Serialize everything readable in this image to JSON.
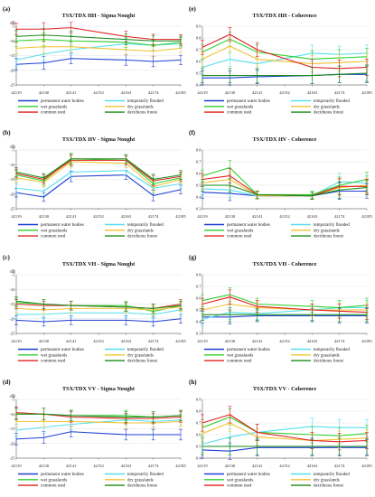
{
  "figure": {
    "colors": {
      "permanent water bodies": "#1f3fd4",
      "temporarily flooded": "#55dfee",
      "wet grasslands": "#2fd12f",
      "dry grasslands": "#f2c230",
      "common reed": "#e02020",
      "deciduous forest": "#1a8a1a"
    }
  },
  "chart_data": [
    {
      "id": "a",
      "panel_label": "(a)",
      "type": "line",
      "title": "TSX/TDX  HH - Sigma Nought",
      "unit": "dB",
      "x": [
        "42119",
        "42130",
        "42141",
        "42152",
        "42163",
        "42174",
        "42185"
      ],
      "yticks": [
        "-5",
        "-10",
        "-15",
        "-20",
        "-25"
      ],
      "ylim": [
        -25,
        -5
      ],
      "legend": [
        "permanent water bodies",
        "temporarily flooded",
        "wet grasslands",
        "dry grasslands",
        "common reed",
        "deciduous forest"
      ],
      "series": [
        {
          "name": "permanent water bodies",
          "values": [
            -18.0,
            -17.5,
            -16.0,
            null,
            -16.5,
            -17.0,
            -16.5
          ]
        },
        {
          "name": "temporarily flooded",
          "values": [
            -16.5,
            -14.5,
            -13.0,
            null,
            -11.0,
            -11.5,
            -11.0
          ]
        },
        {
          "name": "wet grasslands",
          "values": [
            -10.0,
            -9.5,
            -10.0,
            null,
            -10.5,
            -11.5,
            -10.5
          ]
        },
        {
          "name": "dry grasslands",
          "values": [
            -12.5,
            -12.0,
            -12.0,
            null,
            -13.0,
            -13.5,
            -12.5
          ]
        },
        {
          "name": "common reed",
          "values": [
            -6.0,
            -6.0,
            -5.5,
            null,
            -8.5,
            -9.5,
            -9.5
          ]
        },
        {
          "name": "deciduous forest",
          "values": [
            -8.5,
            -8.0,
            -8.5,
            null,
            -9.5,
            -10.0,
            -10.0
          ]
        }
      ],
      "err": [
        2.0,
        2.2,
        1.8,
        null,
        1.8,
        1.8,
        1.6
      ]
    },
    {
      "id": "b",
      "panel_label": "(b)",
      "type": "line",
      "title": "TSX/TDX  HV - Sigma Nought",
      "unit": "dB",
      "x": [
        "42119",
        "42130",
        "42141",
        "42152",
        "42163",
        "42174",
        "42185"
      ],
      "yticks": [
        "-5",
        "-10",
        "-15",
        "-20",
        "-25"
      ],
      "ylim": [
        -25,
        -5
      ],
      "legend": [
        "permanent water bodies",
        "temporarily flooded",
        "wet grasslands",
        "dry grasslands",
        "common reed",
        "deciduous forest"
      ],
      "series": [
        {
          "name": "permanent water bodies",
          "values": [
            -19.5,
            -21.0,
            -14.0,
            null,
            -13.5,
            -20.5,
            -18.5
          ]
        },
        {
          "name": "temporarily flooded",
          "values": [
            -18.0,
            -19.0,
            -12.5,
            null,
            -12.0,
            -18.0,
            -16.5
          ]
        },
        {
          "name": "wet grasslands",
          "values": [
            -13.5,
            -15.5,
            -8.0,
            null,
            -8.5,
            -16.5,
            -14.5
          ]
        },
        {
          "name": "dry grasslands",
          "values": [
            -14.5,
            -16.0,
            -9.0,
            null,
            -9.5,
            -17.5,
            -15.0
          ]
        },
        {
          "name": "common reed",
          "values": [
            -13.0,
            -15.0,
            -8.5,
            null,
            -8.5,
            -15.5,
            -14.0
          ]
        },
        {
          "name": "deciduous forest",
          "values": [
            -12.5,
            -14.5,
            -8.0,
            null,
            -8.0,
            -15.0,
            -13.5
          ]
        }
      ],
      "err": [
        1.5,
        1.5,
        1.8,
        null,
        1.5,
        1.8,
        1.5
      ]
    },
    {
      "id": "c",
      "panel_label": "(c)",
      "type": "line",
      "title": "TSX/TDX  VH - Sigma Nought",
      "unit": "dB",
      "x": [
        "42119",
        "42130",
        "42141",
        "42152",
        "42163",
        "42174",
        "42185"
      ],
      "yticks": [
        "-5",
        "-10",
        "-15",
        "-20",
        "-25"
      ],
      "ylim": [
        -25,
        -5
      ],
      "legend": [
        "permanent water bodies",
        "temporarily flooded",
        "wet grasslands",
        "dry grasslands",
        "common reed",
        "deciduous forest"
      ],
      "series": [
        {
          "name": "permanent water bodies",
          "values": [
            -20.5,
            -21.0,
            -20.5,
            null,
            -20.5,
            -21.0,
            -20.0
          ]
        },
        {
          "name": "temporarily flooded",
          "values": [
            -18.5,
            -18.5,
            -18.0,
            null,
            -18.0,
            -18.5,
            -17.0
          ]
        },
        {
          "name": "wet grasslands",
          "values": [
            -14.5,
            -15.0,
            -15.5,
            null,
            -15.5,
            -17.5,
            -15.5
          ]
        },
        {
          "name": "dry grasslands",
          "values": [
            -16.5,
            -17.0,
            -16.5,
            null,
            -16.5,
            -17.0,
            -16.0
          ]
        },
        {
          "name": "common reed",
          "values": [
            -15.0,
            -15.5,
            -15.5,
            null,
            -16.0,
            -16.5,
            -15.0
          ]
        },
        {
          "name": "deciduous forest",
          "values": [
            -14.0,
            -15.0,
            -15.5,
            null,
            -16.0,
            -16.5,
            -15.5
          ]
        }
      ],
      "err": [
        1.5,
        1.5,
        1.5,
        null,
        1.5,
        1.5,
        1.5
      ]
    },
    {
      "id": "d",
      "panel_label": "(d)",
      "type": "line",
      "title": "TSX/TDX  VV - Sigma Nought",
      "unit": "dB",
      "x": [
        "42119",
        "42130",
        "42141",
        "42152",
        "42163",
        "42174",
        "42185"
      ],
      "yticks": [
        "-5",
        "-10",
        "-15",
        "-20",
        "-25"
      ],
      "ylim": [
        -25,
        -5
      ],
      "legend": [
        "permanent water bodies",
        "temporarily flooded",
        "wet grasslands",
        "dry grasslands",
        "common reed",
        "deciduous forest"
      ],
      "series": [
        {
          "name": "permanent water bodies",
          "values": [
            -18.5,
            -18.0,
            -16.0,
            null,
            -17.0,
            -17.0,
            -17.0
          ]
        },
        {
          "name": "temporarily flooded",
          "values": [
            -15.5,
            -14.5,
            -13.5,
            null,
            -12.0,
            -12.5,
            -12.0
          ]
        },
        {
          "name": "wet grasslands",
          "values": [
            -10.0,
            -10.0,
            -10.5,
            null,
            -10.5,
            -11.0,
            -10.5
          ]
        },
        {
          "name": "dry grasslands",
          "values": [
            -12.5,
            -12.5,
            -12.5,
            null,
            -13.0,
            -13.0,
            -12.5
          ]
        },
        {
          "name": "common reed",
          "values": [
            -9.5,
            -10.0,
            -11.0,
            null,
            -11.5,
            -11.5,
            -11.0
          ]
        },
        {
          "name": "deciduous forest",
          "values": [
            -10.0,
            -10.0,
            -10.5,
            null,
            -11.0,
            -11.0,
            -10.5
          ]
        }
      ],
      "err": [
        2.0,
        2.0,
        1.8,
        null,
        1.8,
        1.8,
        1.8
      ]
    },
    {
      "id": "e",
      "panel_label": "(e)",
      "type": "line",
      "title": "TSX/TDX  HH - Coherence",
      "unit": "",
      "x": [
        "42119",
        "42130",
        "42141",
        "42152",
        "42163",
        "42174",
        "42185"
      ],
      "yticks": [
        "0.9",
        "0.8",
        "0.7",
        "0.6",
        "0.5",
        "0.4"
      ],
      "ylim": [
        0.4,
        0.9
      ],
      "legend": [
        "permanent water bodies",
        "temporarily flooded",
        "wet grasslands",
        "dry grasslands",
        "common reed",
        "deciduous forest"
      ],
      "series": [
        {
          "name": "permanent water bodies",
          "values": [
            0.46,
            0.46,
            0.47,
            null,
            0.48,
            0.49,
            0.49
          ]
        },
        {
          "name": "temporarily flooded",
          "values": [
            0.55,
            0.62,
            0.58,
            null,
            0.67,
            0.66,
            0.67
          ]
        },
        {
          "name": "wet grasslands",
          "values": [
            0.68,
            0.79,
            0.68,
            null,
            0.62,
            0.63,
            0.64
          ]
        },
        {
          "name": "dry grasslands",
          "values": [
            0.62,
            0.73,
            0.62,
            null,
            0.58,
            0.59,
            0.6
          ]
        },
        {
          "name": "common reed",
          "values": [
            0.72,
            0.83,
            0.7,
            null,
            0.55,
            0.54,
            0.55
          ]
        },
        {
          "name": "deciduous forest",
          "values": [
            0.48,
            0.48,
            0.48,
            null,
            0.48,
            0.49,
            0.5
          ]
        }
      ],
      "err": [
        0.06,
        0.06,
        0.06,
        null,
        0.07,
        0.07,
        0.07
      ]
    },
    {
      "id": "f",
      "panel_label": "(f)",
      "type": "line",
      "title": "TSX/TDX  HV - Coherence",
      "unit": "",
      "x": [
        "42119",
        "42130",
        "42141",
        "42152",
        "42163",
        "42174",
        "42185"
      ],
      "yticks": [
        "0.8",
        "0.7",
        "0.6",
        "0.5",
        "0.4",
        "0.3"
      ],
      "ylim": [
        0.3,
        0.8
      ],
      "legend": [
        "permanent water bodies",
        "temporarily flooded",
        "wet grasslands",
        "dry grasslands",
        "common reed",
        "deciduous forest"
      ],
      "series": [
        {
          "name": "permanent water bodies",
          "values": [
            0.44,
            0.43,
            0.41,
            null,
            0.41,
            0.45,
            0.45
          ]
        },
        {
          "name": "temporarily flooded",
          "values": [
            0.47,
            0.46,
            0.41,
            null,
            0.41,
            0.53,
            0.52
          ]
        },
        {
          "name": "wet grasslands",
          "values": [
            0.58,
            0.65,
            0.42,
            null,
            0.42,
            0.5,
            0.55
          ]
        },
        {
          "name": "dry grasslands",
          "values": [
            0.52,
            0.55,
            0.41,
            null,
            0.41,
            0.48,
            0.5
          ]
        },
        {
          "name": "common reed",
          "values": [
            0.55,
            0.58,
            0.42,
            null,
            0.41,
            0.49,
            0.49
          ]
        },
        {
          "name": "deciduous forest",
          "values": [
            0.5,
            0.5,
            0.42,
            null,
            0.41,
            0.46,
            0.48
          ]
        }
      ],
      "err": [
        0.05,
        0.06,
        0.03,
        null,
        0.03,
        0.07,
        0.06
      ]
    },
    {
      "id": "g",
      "panel_label": "(g)",
      "type": "line",
      "title": "TSX/TDX  VH - Coherence",
      "unit": "",
      "x": [
        "42119",
        "42130",
        "42141",
        "42152",
        "42163",
        "42174",
        "42185"
      ],
      "yticks": [
        "0.8",
        "0.7",
        "0.6",
        "0.5",
        "0.4",
        "0.3"
      ],
      "ylim": [
        0.3,
        0.8
      ],
      "legend": [
        "permanent water bodies",
        "temporarily flooded",
        "wet grasslands",
        "dry grasslands",
        "common reed",
        "deciduous forest"
      ],
      "series": [
        {
          "name": "permanent water bodies",
          "values": [
            0.44,
            0.44,
            0.45,
            null,
            0.45,
            0.45,
            0.45
          ]
        },
        {
          "name": "temporarily flooded",
          "values": [
            0.42,
            0.48,
            0.47,
            null,
            0.5,
            0.52,
            0.52
          ]
        },
        {
          "name": "wet grasslands",
          "values": [
            0.58,
            0.63,
            0.55,
            null,
            0.53,
            0.52,
            0.54
          ]
        },
        {
          "name": "dry grasslands",
          "values": [
            0.5,
            0.55,
            0.52,
            null,
            0.5,
            0.5,
            0.5
          ]
        },
        {
          "name": "common reed",
          "values": [
            0.55,
            0.61,
            0.53,
            null,
            0.5,
            0.49,
            0.48
          ]
        },
        {
          "name": "deciduous forest",
          "values": [
            0.46,
            0.46,
            0.46,
            null,
            0.46,
            0.46,
            0.46
          ]
        }
      ],
      "err": [
        0.05,
        0.06,
        0.05,
        null,
        0.05,
        0.06,
        0.06
      ]
    },
    {
      "id": "h",
      "panel_label": "(h)",
      "type": "line",
      "title": "TSX/TDX  VV - Coherence",
      "unit": "",
      "x": [
        "42119",
        "42130",
        "42141",
        "42152",
        "42163",
        "42174",
        "42185"
      ],
      "yticks": [
        "0.9",
        "0.8",
        "0.7",
        "0.6",
        "0.5",
        "0.4"
      ],
      "ylim": [
        0.4,
        0.9
      ],
      "legend": [
        "permanent water bodies",
        "temporarily flooded",
        "wet grasslands",
        "dry grasslands",
        "common reed",
        "deciduous forest"
      ],
      "series": [
        {
          "name": "permanent water bodies",
          "values": [
            0.47,
            0.46,
            0.49,
            null,
            0.49,
            0.49,
            0.49
          ]
        },
        {
          "name": "temporarily flooded",
          "values": [
            0.52,
            0.58,
            0.62,
            null,
            0.67,
            0.66,
            0.66
          ]
        },
        {
          "name": "wet grasslands",
          "values": [
            0.66,
            0.75,
            0.62,
            null,
            0.6,
            0.59,
            0.61
          ]
        },
        {
          "name": "dry grasslands",
          "values": [
            0.61,
            0.7,
            0.58,
            null,
            0.55,
            0.56,
            0.57
          ]
        },
        {
          "name": "common reed",
          "values": [
            0.7,
            0.77,
            0.62,
            null,
            0.55,
            0.54,
            0.55
          ]
        },
        {
          "name": "deciduous forest",
          "values": [
            0.5,
            0.5,
            0.5,
            null,
            0.5,
            0.5,
            0.5
          ]
        }
      ],
      "err": [
        0.07,
        0.07,
        0.07,
        null,
        0.07,
        0.07,
        0.07
      ]
    }
  ]
}
